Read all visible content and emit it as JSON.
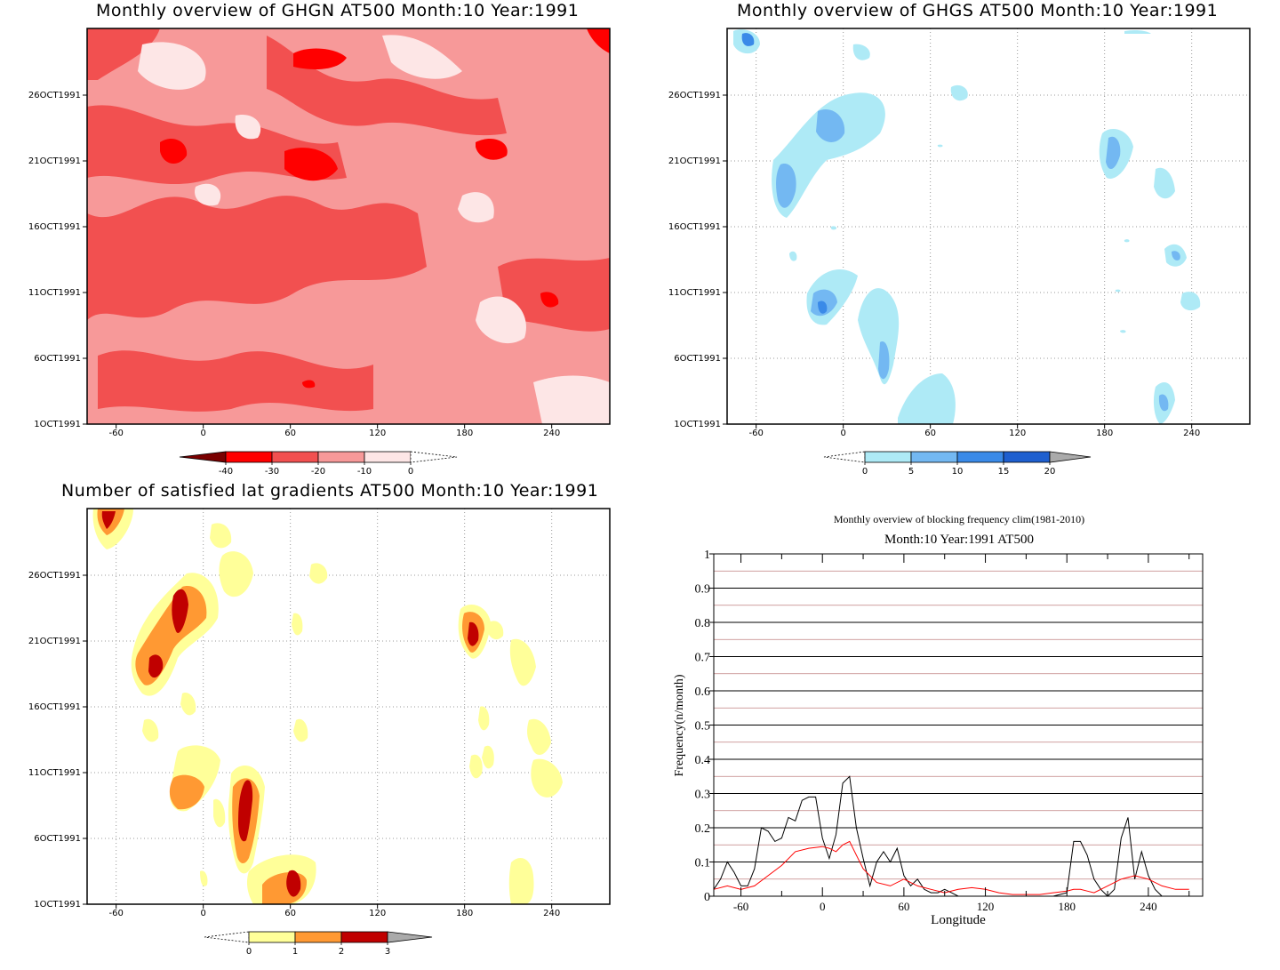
{
  "panels": {
    "tl": {
      "title": "Monthly overview of GHGN AT500 Month:10 Year:1991"
    },
    "tr": {
      "title": "Monthly overview of GHGS AT500 Month:10 Year:1991"
    },
    "bl": {
      "title": "Number of satisfied lat gradients AT500 Month:10 Year:1991"
    },
    "br": {
      "title": "Monthly overview of blocking frequency clim(1981-2010)",
      "subtitle": "Month:10 Year:1991  AT500"
    }
  },
  "chart_data": [
    {
      "type": "heatmap",
      "title": "Monthly overview of GHGN AT500 Month:10 Year:1991",
      "x_ticks": [
        -60,
        0,
        60,
        120,
        180,
        240
      ],
      "y_ticks": [
        "1OCT1991",
        "6OCT1991",
        "11OCT1991",
        "16OCT1991",
        "21OCT1991",
        "26OCT1991"
      ],
      "xlim": [
        -80,
        280
      ],
      "colorbar": {
        "levels": [
          "-40",
          "-30",
          "-20",
          "-10",
          "0"
        ],
        "colors": [
          "#7a0000",
          "#ff0000",
          "#f25050",
          "#f79999",
          "#fde6e6",
          "#ffffff"
        ]
      }
    },
    {
      "type": "heatmap",
      "title": "Monthly overview of GHGS AT500 Month:10 Year:1991",
      "x_ticks": [
        -60,
        0,
        60,
        120,
        180,
        240
      ],
      "y_ticks": [
        "1OCT1991",
        "6OCT1991",
        "11OCT1991",
        "16OCT1991",
        "21OCT1991",
        "26OCT1991"
      ],
      "xlim": [
        -80,
        280
      ],
      "colorbar": {
        "levels": [
          "0",
          "5",
          "10",
          "15",
          "20"
        ],
        "colors": [
          "#ffffff",
          "#aeeaf6",
          "#73b8f2",
          "#3a8ae8",
          "#1e5fcf",
          "#aaaaaa"
        ]
      }
    },
    {
      "type": "heatmap",
      "title": "Number of satisfied lat gradients AT500 Month:10 Year:1991",
      "x_ticks": [
        -60,
        0,
        60,
        120,
        180,
        240
      ],
      "y_ticks": [
        "1OCT1991",
        "6OCT1991",
        "11OCT1991",
        "16OCT1991",
        "21OCT1991",
        "26OCT1991"
      ],
      "xlim": [
        -80,
        280
      ],
      "colorbar": {
        "levels": [
          "0",
          "1",
          "2",
          "3"
        ],
        "colors": [
          "#ffffff",
          "#ffff99",
          "#ff9933",
          "#c00000",
          "#aaaaaa"
        ]
      }
    },
    {
      "type": "line",
      "title": "Monthly overview of blocking frequency clim(1981-2010)",
      "subtitle": "Month:10 Year:1991  AT500",
      "xlabel": "Longitude",
      "ylabel": "Frequency(n/month)",
      "xlim": [
        -80,
        280
      ],
      "ylim": [
        0,
        1
      ],
      "x_ticks": [
        -60,
        0,
        60,
        120,
        180,
        240
      ],
      "y_ticks": [
        "0",
        "0.1",
        "0.2",
        "0.3",
        "0.4",
        "0.5",
        "0.6",
        "0.7",
        "0.8",
        "0.9",
        "1"
      ],
      "series": [
        {
          "color": "#000000",
          "x": [
            -80,
            -75,
            -70,
            -65,
            -60,
            -55,
            -50,
            -45,
            -40,
            -35,
            -30,
            -25,
            -20,
            -15,
            -10,
            -5,
            0,
            5,
            10,
            15,
            20,
            25,
            30,
            35,
            40,
            45,
            50,
            55,
            60,
            65,
            70,
            75,
            80,
            85,
            90,
            95,
            100,
            110,
            120,
            130,
            140,
            150,
            160,
            170,
            180,
            185,
            190,
            195,
            200,
            205,
            210,
            215,
            220,
            225,
            230,
            235,
            240,
            245,
            250
          ],
          "y": [
            0.02,
            0.05,
            0.1,
            0.07,
            0.03,
            0.03,
            0.08,
            0.2,
            0.19,
            0.16,
            0.17,
            0.23,
            0.22,
            0.28,
            0.29,
            0.29,
            0.17,
            0.11,
            0.18,
            0.33,
            0.35,
            0.2,
            0.11,
            0.03,
            0.1,
            0.13,
            0.1,
            0.14,
            0.06,
            0.03,
            0.05,
            0.02,
            0.01,
            0.01,
            0.02,
            0.01,
            0.0,
            0.0,
            0.0,
            0.0,
            0.0,
            0.0,
            0.0,
            0.0,
            0.01,
            0.16,
            0.16,
            0.12,
            0.05,
            0.02,
            0.0,
            0.02,
            0.17,
            0.23,
            0.05,
            0.13,
            0.06,
            0.02,
            0.0
          ]
        },
        {
          "color": "#ff0000",
          "x": [
            -80,
            -70,
            -60,
            -50,
            -40,
            -30,
            -20,
            -10,
            0,
            5,
            10,
            15,
            20,
            25,
            30,
            40,
            50,
            60,
            70,
            80,
            90,
            100,
            110,
            120,
            130,
            140,
            150,
            160,
            170,
            180,
            185,
            190,
            195,
            200,
            205,
            210,
            220,
            230,
            240,
            250,
            260,
            270
          ],
          "y": [
            0.02,
            0.03,
            0.02,
            0.03,
            0.06,
            0.09,
            0.13,
            0.14,
            0.145,
            0.14,
            0.13,
            0.15,
            0.16,
            0.12,
            0.08,
            0.04,
            0.03,
            0.05,
            0.03,
            0.02,
            0.01,
            0.02,
            0.025,
            0.02,
            0.01,
            0.005,
            0.005,
            0.005,
            0.01,
            0.015,
            0.02,
            0.02,
            0.015,
            0.01,
            0.02,
            0.03,
            0.05,
            0.06,
            0.05,
            0.03,
            0.02,
            0.02
          ]
        }
      ]
    }
  ]
}
